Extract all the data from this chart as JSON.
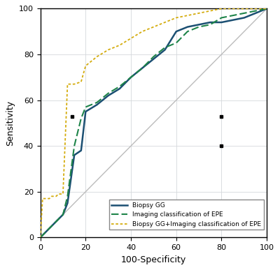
{
  "title": "",
  "xlabel": "100-Specificity",
  "ylabel": "Sensitivity",
  "xlim": [
    0,
    100
  ],
  "ylim": [
    0,
    100
  ],
  "xticks": [
    0,
    20,
    40,
    60,
    80,
    100
  ],
  "yticks": [
    0,
    20,
    40,
    60,
    80,
    100
  ],
  "biopsy_gg_x": [
    0,
    1,
    3,
    5,
    8,
    10,
    12,
    15,
    18,
    20,
    25,
    30,
    35,
    40,
    45,
    50,
    55,
    60,
    65,
    70,
    75,
    80,
    85,
    90,
    95,
    100
  ],
  "biopsy_gg_y": [
    0,
    1,
    3,
    5,
    8,
    10,
    15,
    36,
    38,
    55,
    58,
    62,
    65,
    70,
    74,
    78,
    82,
    90,
    92,
    93,
    94,
    94,
    95,
    96,
    98,
    100
  ],
  "imaging_epe_x": [
    0,
    1,
    3,
    5,
    8,
    10,
    12,
    15,
    18,
    20,
    25,
    30,
    35,
    40,
    45,
    50,
    55,
    60,
    65,
    70,
    75,
    80,
    85,
    90,
    95,
    100
  ],
  "imaging_epe_y": [
    0,
    1,
    3,
    5,
    8,
    10,
    18,
    40,
    52,
    57,
    59,
    63,
    66,
    70,
    74,
    79,
    83,
    85,
    90,
    92,
    93,
    96,
    97,
    98,
    99,
    100
  ],
  "combined_x": [
    0,
    1,
    2,
    3,
    4,
    5,
    6,
    7,
    8,
    9,
    10,
    12,
    15,
    18,
    20,
    25,
    30,
    35,
    40,
    45,
    50,
    55,
    60,
    65,
    70,
    75,
    80,
    85,
    90,
    95,
    100
  ],
  "combined_y": [
    0,
    17,
    17,
    17,
    17,
    18,
    18,
    18,
    19,
    19,
    19,
    67,
    67,
    68,
    75,
    79,
    82,
    84,
    87,
    90,
    92,
    94,
    96,
    97,
    98,
    99,
    100,
    100,
    100,
    100,
    100
  ],
  "dot1_x": 14,
  "dot1_y": 53,
  "dot2_x": 80,
  "dot2_y": 53,
  "dot3_x": 80,
  "dot3_y": 40,
  "biopsy_color": "#1b4f72",
  "imaging_color": "#1e8449",
  "combined_color": "#d4ac0d",
  "reference_color": "#bcbcbc",
  "grid_color": "#d5d8dc",
  "legend_labels": [
    "Biopsy GG",
    "Imaging classification of EPE",
    "Biopsy GG+Imaging classification of EPE"
  ],
  "bg_color": "#ffffff",
  "fontsize": 9,
  "tick_fontsize": 8
}
